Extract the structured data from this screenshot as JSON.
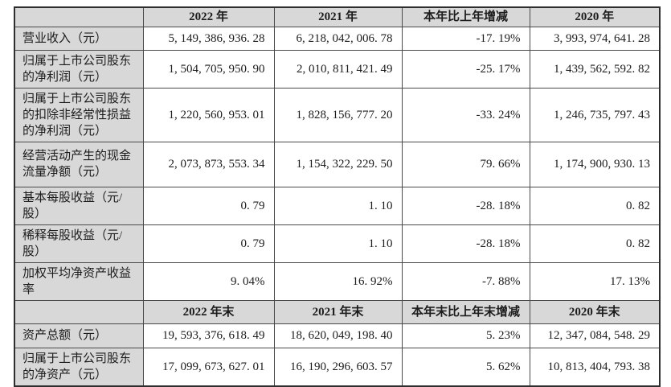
{
  "colors": {
    "header_bg": "#d8d8d8",
    "label_bg": "#d8d8d8",
    "body_bg": "#ffffff",
    "border_inner": "#4a4a4a",
    "border_outer": "#2e2e2e",
    "text": "#1c1c1c"
  },
  "table": {
    "sections": [
      {
        "header": [
          "",
          "2022 年",
          "2021 年",
          "本年比上年增减",
          "2020 年"
        ],
        "rows": [
          [
            "营业收入（元）",
            "5, 149, 386, 936. 28",
            "6, 218, 042, 006. 78",
            "-17. 19%",
            "3, 993, 974, 641. 28"
          ],
          [
            "归属于上市公司股东的净利润（元）",
            "1, 504, 705, 950. 90",
            "2, 010, 811, 421. 49",
            "-25. 17%",
            "1, 439, 562, 592. 82"
          ],
          [
            "归属于上市公司股东的扣除非经常性损益的净利润（元）",
            "1, 220, 560, 953. 01",
            "1, 828, 156, 777. 20",
            "-33. 24%",
            "1, 246, 735, 797. 43"
          ],
          [
            "经营活动产生的现金流量净额（元）",
            "2, 073, 873, 553. 34",
            "1, 154, 322, 229. 50",
            "79. 66%",
            "1, 174, 900, 930. 13"
          ],
          [
            "基本每股收益（元/股）",
            "0. 79",
            "1. 10",
            "-28. 18%",
            "0. 82"
          ],
          [
            "稀释每股收益（元/股）",
            "0. 79",
            "1. 10",
            "-28. 18%",
            "0. 82"
          ],
          [
            "加权平均净资产收益率",
            "9. 04%",
            "16. 92%",
            "-7. 88%",
            "17. 13%"
          ]
        ]
      },
      {
        "header": [
          "",
          "2022 年末",
          "2021 年末",
          "本年末比上年末增减",
          "2020 年末"
        ],
        "rows": [
          [
            "资产总额（元）",
            "19, 593, 376, 618. 49",
            "18, 620, 049, 198. 40",
            "5. 23%",
            "12, 347, 084, 548. 29"
          ],
          [
            "归属于上市公司股东的净资产（元）",
            "17, 099, 673, 627. 01",
            "16, 190, 296, 603. 57",
            "5. 62%",
            "10, 813, 404, 793. 38"
          ]
        ]
      }
    ]
  }
}
